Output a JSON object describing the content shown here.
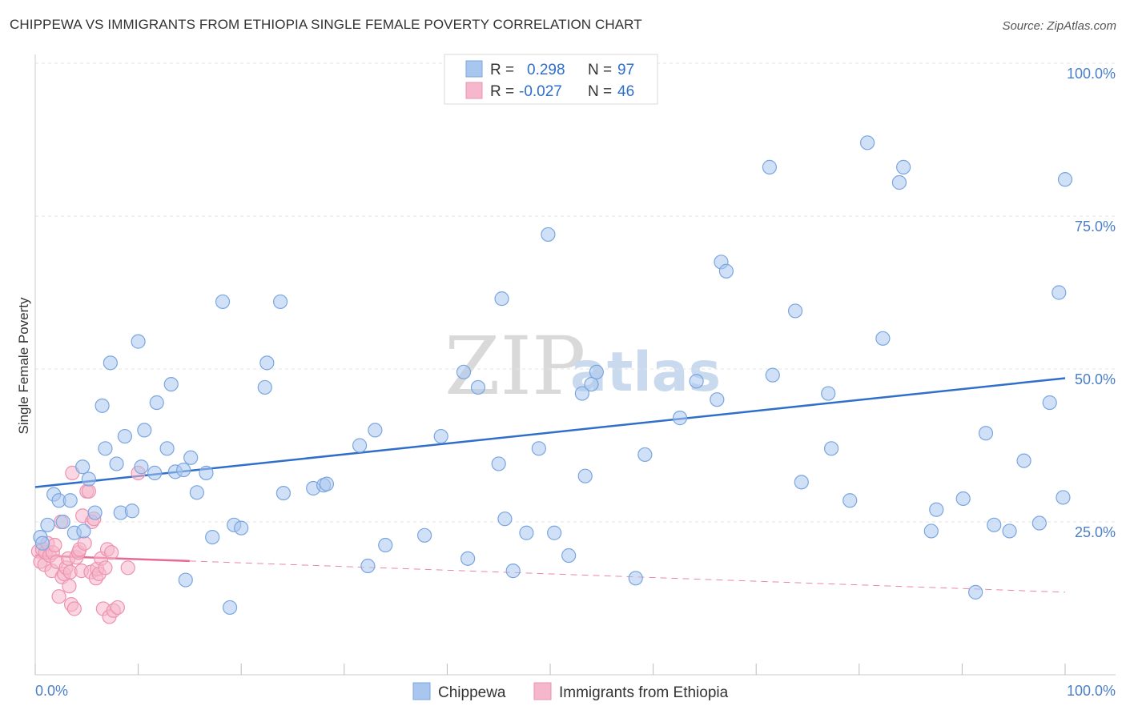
{
  "title": "CHIPPEWA VS IMMIGRANTS FROM ETHIOPIA SINGLE FEMALE POVERTY CORRELATION CHART",
  "source": "Source: ZipAtlas.com",
  "watermark": {
    "zip": "ZIP",
    "atlas": "atlas"
  },
  "colors": {
    "chippewa_fill": "#a9c6ee",
    "chippewa_stroke": "#7aa6e0",
    "chippewa_line": "#2f6fc9",
    "ethiopia_fill": "#f5b7cb",
    "ethiopia_stroke": "#ec93b0",
    "ethiopia_line": "#e86a93",
    "tick_text": "#4a7ec9"
  },
  "legend": {
    "rows": [
      {
        "r_label": "R =",
        "r_value": "0.298",
        "n_label": "N =",
        "n_value": "97"
      },
      {
        "r_label": "R =",
        "r_value": "-0.027",
        "n_label": "N =",
        "n_value": "46"
      }
    ]
  },
  "chart_data": {
    "type": "scatter",
    "title": "CHIPPEWA VS IMMIGRANTS FROM ETHIOPIA SINGLE FEMALE POVERTY CORRELATION CHART",
    "xlabel": "",
    "ylabel": "Single Female Poverty",
    "xlim": [
      0,
      100
    ],
    "ylim": [
      0,
      100
    ],
    "x_tick_labels": [
      "0.0%",
      "100.0%"
    ],
    "y_ticks": [
      25,
      50,
      75,
      100
    ],
    "y_tick_labels": [
      "25.0%",
      "50.0%",
      "75.0%",
      "100.0%"
    ],
    "grid": true,
    "legend_position": "top-center",
    "series": [
      {
        "name": "Chippewa",
        "r": 0.298,
        "n": 97,
        "trend": {
          "x0": 0,
          "y0": 30.7,
          "x1": 100,
          "y1": 48.5,
          "dashed_from": null
        },
        "points": [
          [
            0.5,
            22.5
          ],
          [
            0.7,
            21.5
          ],
          [
            1.2,
            24.5
          ],
          [
            1.8,
            29.5
          ],
          [
            2.3,
            28.5
          ],
          [
            2.7,
            25.0
          ],
          [
            3.4,
            28.5
          ],
          [
            3.8,
            23.2
          ],
          [
            4.6,
            34.0
          ],
          [
            4.7,
            23.5
          ],
          [
            5.2,
            32.0
          ],
          [
            5.8,
            26.5
          ],
          [
            6.5,
            44.0
          ],
          [
            6.8,
            37.0
          ],
          [
            7.3,
            51.0
          ],
          [
            7.9,
            34.5
          ],
          [
            8.3,
            26.5
          ],
          [
            8.7,
            39.0
          ],
          [
            9.4,
            26.8
          ],
          [
            10.0,
            54.5
          ],
          [
            10.3,
            34.0
          ],
          [
            10.6,
            40.0
          ],
          [
            11.6,
            33.0
          ],
          [
            11.8,
            44.5
          ],
          [
            12.8,
            37.0
          ],
          [
            13.2,
            47.5
          ],
          [
            13.6,
            33.2
          ],
          [
            14.4,
            33.5
          ],
          [
            14.6,
            15.5
          ],
          [
            15.1,
            35.5
          ],
          [
            15.7,
            29.8
          ],
          [
            16.6,
            33.0
          ],
          [
            17.2,
            22.5
          ],
          [
            18.2,
            61.0
          ],
          [
            18.9,
            11.0
          ],
          [
            19.3,
            24.5
          ],
          [
            20.0,
            24.0
          ],
          [
            22.3,
            47.0
          ],
          [
            22.5,
            51.0
          ],
          [
            23.8,
            61.0
          ],
          [
            24.1,
            29.7
          ],
          [
            27.0,
            30.5
          ],
          [
            28.0,
            31.0
          ],
          [
            28.3,
            31.2
          ],
          [
            31.5,
            37.5
          ],
          [
            32.3,
            17.8
          ],
          [
            33.0,
            40.0
          ],
          [
            34.0,
            21.2
          ],
          [
            37.8,
            22.8
          ],
          [
            39.4,
            39.0
          ],
          [
            41.6,
            49.5
          ],
          [
            42.0,
            19.0
          ],
          [
            43.0,
            47.0
          ],
          [
            45.0,
            34.5
          ],
          [
            45.3,
            61.5
          ],
          [
            45.6,
            25.5
          ],
          [
            46.4,
            17.0
          ],
          [
            47.7,
            23.2
          ],
          [
            48.9,
            37.0
          ],
          [
            49.8,
            72.0
          ],
          [
            50.4,
            23.2
          ],
          [
            51.8,
            19.5
          ],
          [
            53.1,
            46.0
          ],
          [
            53.4,
            32.5
          ],
          [
            54.0,
            47.5
          ],
          [
            54.5,
            49.5
          ],
          [
            58.3,
            15.8
          ],
          [
            59.2,
            36.0
          ],
          [
            62.6,
            42.0
          ],
          [
            64.2,
            48.0
          ],
          [
            66.2,
            45.0
          ],
          [
            66.6,
            67.5
          ],
          [
            67.1,
            66.0
          ],
          [
            71.3,
            83.0
          ],
          [
            71.6,
            49.0
          ],
          [
            73.8,
            59.5
          ],
          [
            74.4,
            31.5
          ],
          [
            77.0,
            46.0
          ],
          [
            77.3,
            37.0
          ],
          [
            79.1,
            28.5
          ],
          [
            80.8,
            87.0
          ],
          [
            82.3,
            55.0
          ],
          [
            83.9,
            80.5
          ],
          [
            84.3,
            83.0
          ],
          [
            87.0,
            23.5
          ],
          [
            87.5,
            27.0
          ],
          [
            90.1,
            28.8
          ],
          [
            91.3,
            13.5
          ],
          [
            92.3,
            39.5
          ],
          [
            93.1,
            24.5
          ],
          [
            94.6,
            23.5
          ],
          [
            96.0,
            35.0
          ],
          [
            97.5,
            24.8
          ],
          [
            98.5,
            44.5
          ],
          [
            99.4,
            62.5
          ],
          [
            99.8,
            29.0
          ],
          [
            100.0,
            81.0
          ]
        ]
      },
      {
        "name": "Immigrants from Ethiopia",
        "r": -0.027,
        "n": 46,
        "trend": {
          "x0": 0,
          "y0": 19.5,
          "x1": 100,
          "y1": 13.5,
          "solid_until": 15
        },
        "points": [
          [
            0.3,
            20.2
          ],
          [
            0.5,
            18.5
          ],
          [
            0.7,
            20.5
          ],
          [
            0.9,
            18.0
          ],
          [
            1.0,
            20.0
          ],
          [
            1.2,
            21.5
          ],
          [
            1.4,
            19.5
          ],
          [
            1.6,
            17.0
          ],
          [
            1.7,
            20.0
          ],
          [
            1.9,
            21.2
          ],
          [
            2.1,
            18.5
          ],
          [
            2.3,
            12.8
          ],
          [
            2.5,
            25.0
          ],
          [
            2.6,
            16.0
          ],
          [
            2.8,
            16.5
          ],
          [
            3.0,
            17.5
          ],
          [
            3.2,
            19.0
          ],
          [
            3.3,
            14.5
          ],
          [
            3.4,
            16.8
          ],
          [
            3.5,
            11.5
          ],
          [
            3.6,
            33.0
          ],
          [
            3.8,
            10.8
          ],
          [
            4.0,
            19.2
          ],
          [
            4.2,
            20.0
          ],
          [
            4.3,
            20.5
          ],
          [
            4.5,
            17.0
          ],
          [
            4.6,
            26.0
          ],
          [
            4.8,
            21.5
          ],
          [
            5.0,
            30.0
          ],
          [
            5.2,
            30.0
          ],
          [
            5.4,
            16.8
          ],
          [
            5.5,
            25.0
          ],
          [
            5.7,
            25.5
          ],
          [
            5.9,
            15.8
          ],
          [
            6.0,
            17.3
          ],
          [
            6.2,
            16.5
          ],
          [
            6.4,
            19.0
          ],
          [
            6.6,
            10.8
          ],
          [
            6.8,
            17.5
          ],
          [
            7.0,
            20.5
          ],
          [
            7.2,
            9.5
          ],
          [
            7.4,
            20.0
          ],
          [
            7.6,
            10.5
          ],
          [
            8.0,
            11.0
          ],
          [
            9.0,
            17.5
          ],
          [
            10.0,
            33.0
          ]
        ]
      }
    ]
  },
  "bottom_legend": [
    {
      "label": "Chippewa"
    },
    {
      "label": "Immigrants from Ethiopia"
    }
  ]
}
